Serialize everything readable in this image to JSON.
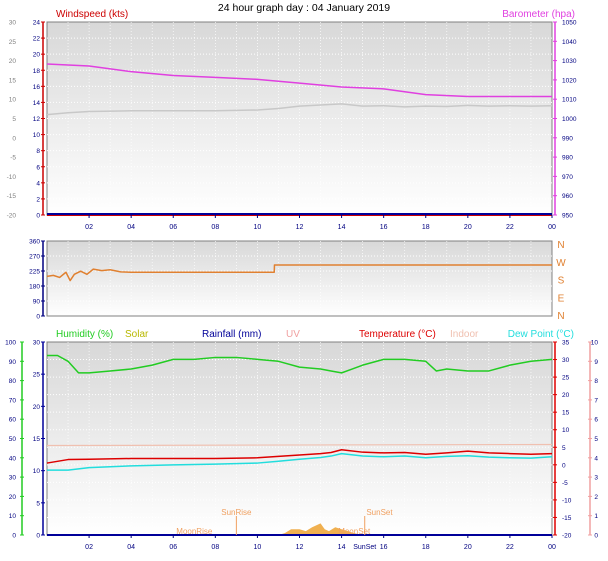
{
  "title": "24 hour graph day : 04 January 2019",
  "x_ticks": [
    "02",
    "04",
    "06",
    "08",
    "10",
    "12",
    "14",
    "16",
    "18",
    "20",
    "22",
    "00"
  ],
  "colors": {
    "windspeed": "#cc0000",
    "barometer": "#e040e0",
    "gust": "#c8c8c8",
    "wind_dir": "#e08030",
    "humidity": "#22cc22",
    "solar": "#b8b800",
    "rainfall": "#000099",
    "uv": "#f0a0a0",
    "temperature": "#dd0000",
    "indoor": "#f0c0b0",
    "dewpoint": "#22dddd",
    "solar_fill": "#f0b050",
    "sun_label": "#f0a060"
  },
  "chart_data": [
    {
      "id": "wind_baro",
      "type": "line",
      "left_label": "Windspeed (kts)",
      "right_label": "Barometer (hpa)",
      "outer_left_ticks": [
        "30",
        "25",
        "20",
        "15",
        "10",
        "5",
        "0",
        "-5",
        "-10",
        "-15",
        "-20"
      ],
      "left_ticks": [
        "24",
        "22",
        "20",
        "18",
        "16",
        "14",
        "12",
        "10",
        "8",
        "6",
        "4",
        "2",
        "0"
      ],
      "right_ticks": [
        "1050",
        "1040",
        "1030",
        "1020",
        "1010",
        "1000",
        "990",
        "980",
        "970",
        "960",
        "950"
      ],
      "ylim_wind": [
        0,
        25
      ],
      "ylim_baro": [
        950,
        1051
      ],
      "series": [
        {
          "key": "barometer",
          "x": [
            0,
            2,
            4,
            6,
            8,
            10,
            12,
            14,
            16,
            18,
            20,
            22,
            24
          ],
          "values": [
            1029,
            1028,
            1025,
            1023,
            1022,
            1021,
            1019,
            1017,
            1016,
            1013,
            1012,
            1012,
            1012
          ]
        },
        {
          "key": "gust",
          "x": [
            0,
            1,
            2,
            4,
            6,
            8,
            10,
            11,
            12,
            13,
            14,
            15,
            16,
            17,
            18,
            19,
            20,
            21,
            22,
            23,
            24
          ],
          "values": [
            6,
            6.5,
            6.8,
            7,
            7,
            7,
            7.2,
            7.6,
            8.2,
            8.5,
            8.8,
            8.2,
            8.3,
            8,
            8.2,
            8.1,
            8.4,
            8.2,
            8.3,
            8.2,
            8.3
          ]
        },
        {
          "key": "windspeed",
          "x": [
            0,
            24
          ],
          "values": [
            0,
            0
          ]
        }
      ]
    },
    {
      "id": "wind_dir",
      "type": "line",
      "left_ticks": [
        "360",
        "270",
        "225",
        "180",
        "90",
        "0"
      ],
      "right_ticks": [
        "N",
        "W",
        "S",
        "E",
        "N"
      ],
      "ylim": [
        0,
        360
      ],
      "series": [
        {
          "key": "wind_dir",
          "x": [
            0,
            0.3,
            0.6,
            0.9,
            1.1,
            1.3,
            1.6,
            1.9,
            2.2,
            2.6,
            3.0,
            3.5,
            4,
            6,
            8,
            10.8,
            10.81,
            12,
            14,
            16,
            18,
            20,
            22,
            24
          ],
          "values": [
            190,
            195,
            185,
            210,
            170,
            200,
            215,
            200,
            225,
            218,
            222,
            212,
            210,
            210,
            210,
            210,
            245,
            245,
            245,
            245,
            245,
            245,
            245,
            245
          ]
        }
      ]
    },
    {
      "id": "temp_hum",
      "type": "line",
      "labels": {
        "humidity": "Humidity (%)",
        "solar": "Solar",
        "rainfall": "Rainfall (mm)",
        "uv": "UV",
        "temperature": "Temperature (°C)",
        "indoor": "Indoor",
        "dewpoint": "Dew Point (°C)"
      },
      "humidity_ticks": [
        "100",
        "90",
        "80",
        "70",
        "60",
        "50",
        "40",
        "30",
        "20",
        "10",
        "0"
      ],
      "rain_ticks": [
        "30",
        "25",
        "20",
        "15",
        "10",
        "5",
        "0"
      ],
      "uv_ticks": [
        "10",
        "9",
        "8",
        "7",
        "6",
        "5",
        "4",
        "3",
        "2",
        "1",
        "0"
      ],
      "temp_ticks": [
        "35",
        "30",
        "25",
        "20",
        "15",
        "10",
        "5",
        "0",
        "-5",
        "-10",
        "-15",
        "-20"
      ],
      "ylim_humidity": [
        0,
        100
      ],
      "ylim_temp": [
        -20,
        35
      ],
      "annotations": [
        "SunRise",
        "SunSet",
        "MoonRise",
        "MoonSet",
        "SunSet"
      ],
      "series": [
        {
          "key": "humidity",
          "x": [
            0,
            0.5,
            1,
            1.5,
            2,
            3,
            4,
            5,
            6,
            7,
            8,
            9,
            10,
            11,
            12,
            13,
            13.5,
            14,
            14.5,
            15,
            16,
            17,
            18,
            18.5,
            19,
            20,
            21,
            22,
            23,
            24
          ],
          "values": [
            93,
            93,
            90,
            84,
            84,
            85,
            86,
            88,
            91,
            91,
            92,
            92,
            91,
            90,
            87,
            86,
            85,
            84,
            86,
            88,
            91,
            91,
            90,
            85,
            86,
            85,
            85,
            88,
            90,
            91
          ]
        },
        {
          "key": "indoor",
          "x": [
            0,
            24
          ],
          "values": [
            5.5,
            5.8
          ]
        },
        {
          "key": "temperature",
          "x": [
            0,
            1,
            2,
            4,
            6,
            8,
            10,
            11,
            12,
            13,
            13.5,
            14,
            15,
            16,
            17,
            18,
            19,
            20,
            21,
            22,
            23,
            24
          ],
          "values": [
            0.5,
            1.5,
            1.6,
            1.8,
            1.8,
            1.8,
            2.0,
            2.4,
            2.8,
            3.2,
            3.5,
            4.3,
            3.6,
            3.4,
            3.5,
            3.0,
            3.4,
            3.9,
            3.4,
            3.2,
            3.0,
            3.2
          ]
        },
        {
          "key": "dewpoint",
          "x": [
            0,
            1,
            2,
            4,
            6,
            8,
            10,
            11,
            12,
            13,
            13.5,
            14,
            15,
            16,
            17,
            18,
            19,
            20,
            21,
            22,
            23,
            24
          ],
          "values": [
            -1.5,
            -1.5,
            -0.8,
            -0.3,
            0,
            0.2,
            0.5,
            1.0,
            1.6,
            2.1,
            2.5,
            3.2,
            2.5,
            2.3,
            2.5,
            2.0,
            2.4,
            2.6,
            2.2,
            2.0,
            1.9,
            2.3
          ]
        },
        {
          "key": "solar",
          "x": [
            11,
            11.3,
            11.6,
            12,
            12.3,
            12.6,
            13,
            13.2,
            13.4,
            13.7,
            14,
            14.3,
            14.6,
            15
          ],
          "values": [
            0,
            1,
            3,
            3,
            2,
            4,
            6,
            3,
            2,
            4,
            3,
            2,
            1,
            0
          ]
        },
        {
          "key": "rainfall",
          "x": [
            0,
            24
          ],
          "values": [
            0,
            0
          ]
        }
      ]
    }
  ]
}
